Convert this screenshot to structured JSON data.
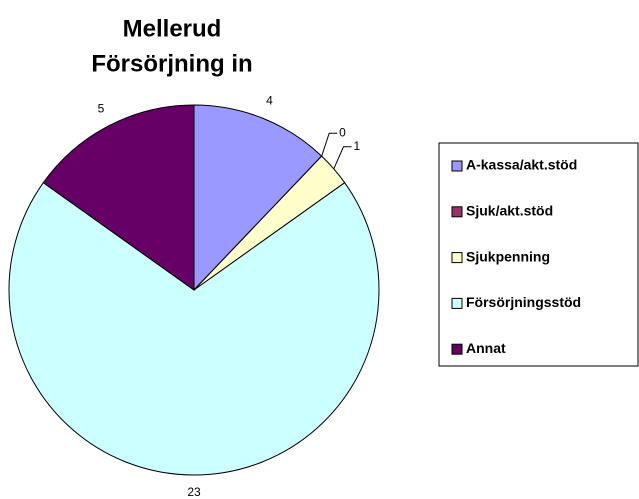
{
  "chart_data": {
    "type": "pie",
    "title": [
      "Mellerud",
      "Försörjning in"
    ],
    "categories": [
      "A-kassa/akt.stöd",
      "Sjuk/akt.stöd",
      "Sjukpenning",
      "Försörjningsstöd",
      "Annat"
    ],
    "values": [
      4,
      0,
      1,
      23,
      5
    ],
    "colors": [
      "#9999ff",
      "#993366",
      "#ffffcc",
      "#ccffff",
      "#660066"
    ],
    "legend": "right"
  }
}
